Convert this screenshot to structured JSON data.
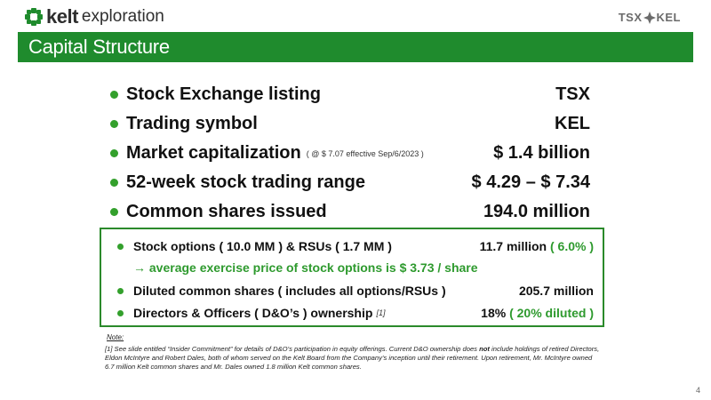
{
  "header": {
    "logo_word": "kelt",
    "logo_sub": "exploration",
    "tsx_left": "TSX",
    "tsx_right": "KEL",
    "title": "Capital Structure"
  },
  "main_items": [
    {
      "label": "Stock Exchange listing",
      "note": "",
      "value": "TSX"
    },
    {
      "label": "Trading symbol",
      "note": "",
      "value": "KEL"
    },
    {
      "label": "Market capitalization",
      "note": "( @ $ 7.07 effective Sep/6/2023 )",
      "value": "$ 1.4 billion"
    },
    {
      "label": "52-week stock trading range",
      "note": "",
      "value": "$ 4.29 – $ 7.34"
    },
    {
      "label": "Common shares issued",
      "note": "",
      "value": "194.0 million"
    }
  ],
  "box": {
    "row1_label": "Stock options ( 10.0 MM ) & RSUs ( 1.7 MM )",
    "row1_value": "11.7 million",
    "row1_value_green": "( 6.0% )",
    "arrow_text": "→ average exercise price of stock options is $ 3.73 / share",
    "row2_label": "Diluted common shares ( includes all options/RSUs )",
    "row2_value": "205.7 million",
    "row3_label": "Directors & Officers ( D&O’s ) ownership",
    "row3_note": "[1]",
    "row3_value": "18%",
    "row3_value_green": "( 20% diluted )"
  },
  "note": {
    "heading": "Note:",
    "text_a": "[1] See slide entitled “Insider Commitment” for details of D&O’s participation in equity offerings. Current D&O ownership does",
    "text_bold": "not",
    "text_b": "include holdings of retired Directors, Eldon McIntyre and Robert Dales, both of whom served on the Kelt Board from the Company’s inception until their retirement. Upon retirement, Mr. McIntyre owned 6.7 million Kelt common shares and Mr. Dales owned 1.8 million Kelt common shares."
  },
  "page_number": "4",
  "colors": {
    "brand_green": "#1f8b2d",
    "bullet_green": "#33a02c",
    "accent_green": "#2e9a2e"
  }
}
